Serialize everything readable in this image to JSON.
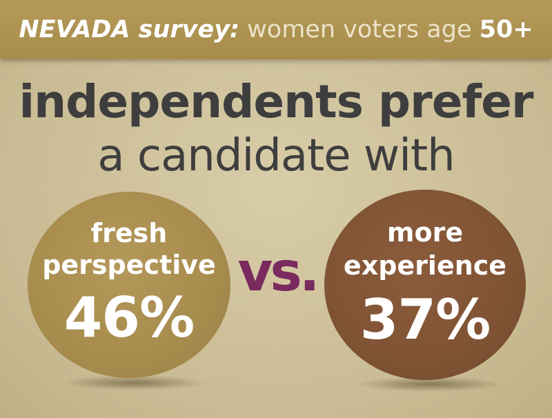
{
  "header": {
    "survey_label": "NEVADA survey:",
    "subject": "women voters age",
    "age": "50+"
  },
  "headline": {
    "line1": "independents prefer",
    "line2": "a candidate with"
  },
  "option_left": {
    "label_line1": "fresh",
    "label_line2": "perspective",
    "percent": "46%"
  },
  "versus": "vs.",
  "option_right": {
    "label_line1": "more",
    "label_line2": "experience",
    "percent": "37%"
  },
  "colors": {
    "background": "#cfc29c",
    "header": "#b09552",
    "left_circle": "#a78c4e",
    "right_circle": "#7f5334",
    "versus": "#7a2a5e",
    "headline_text": "#3e3e3e"
  }
}
